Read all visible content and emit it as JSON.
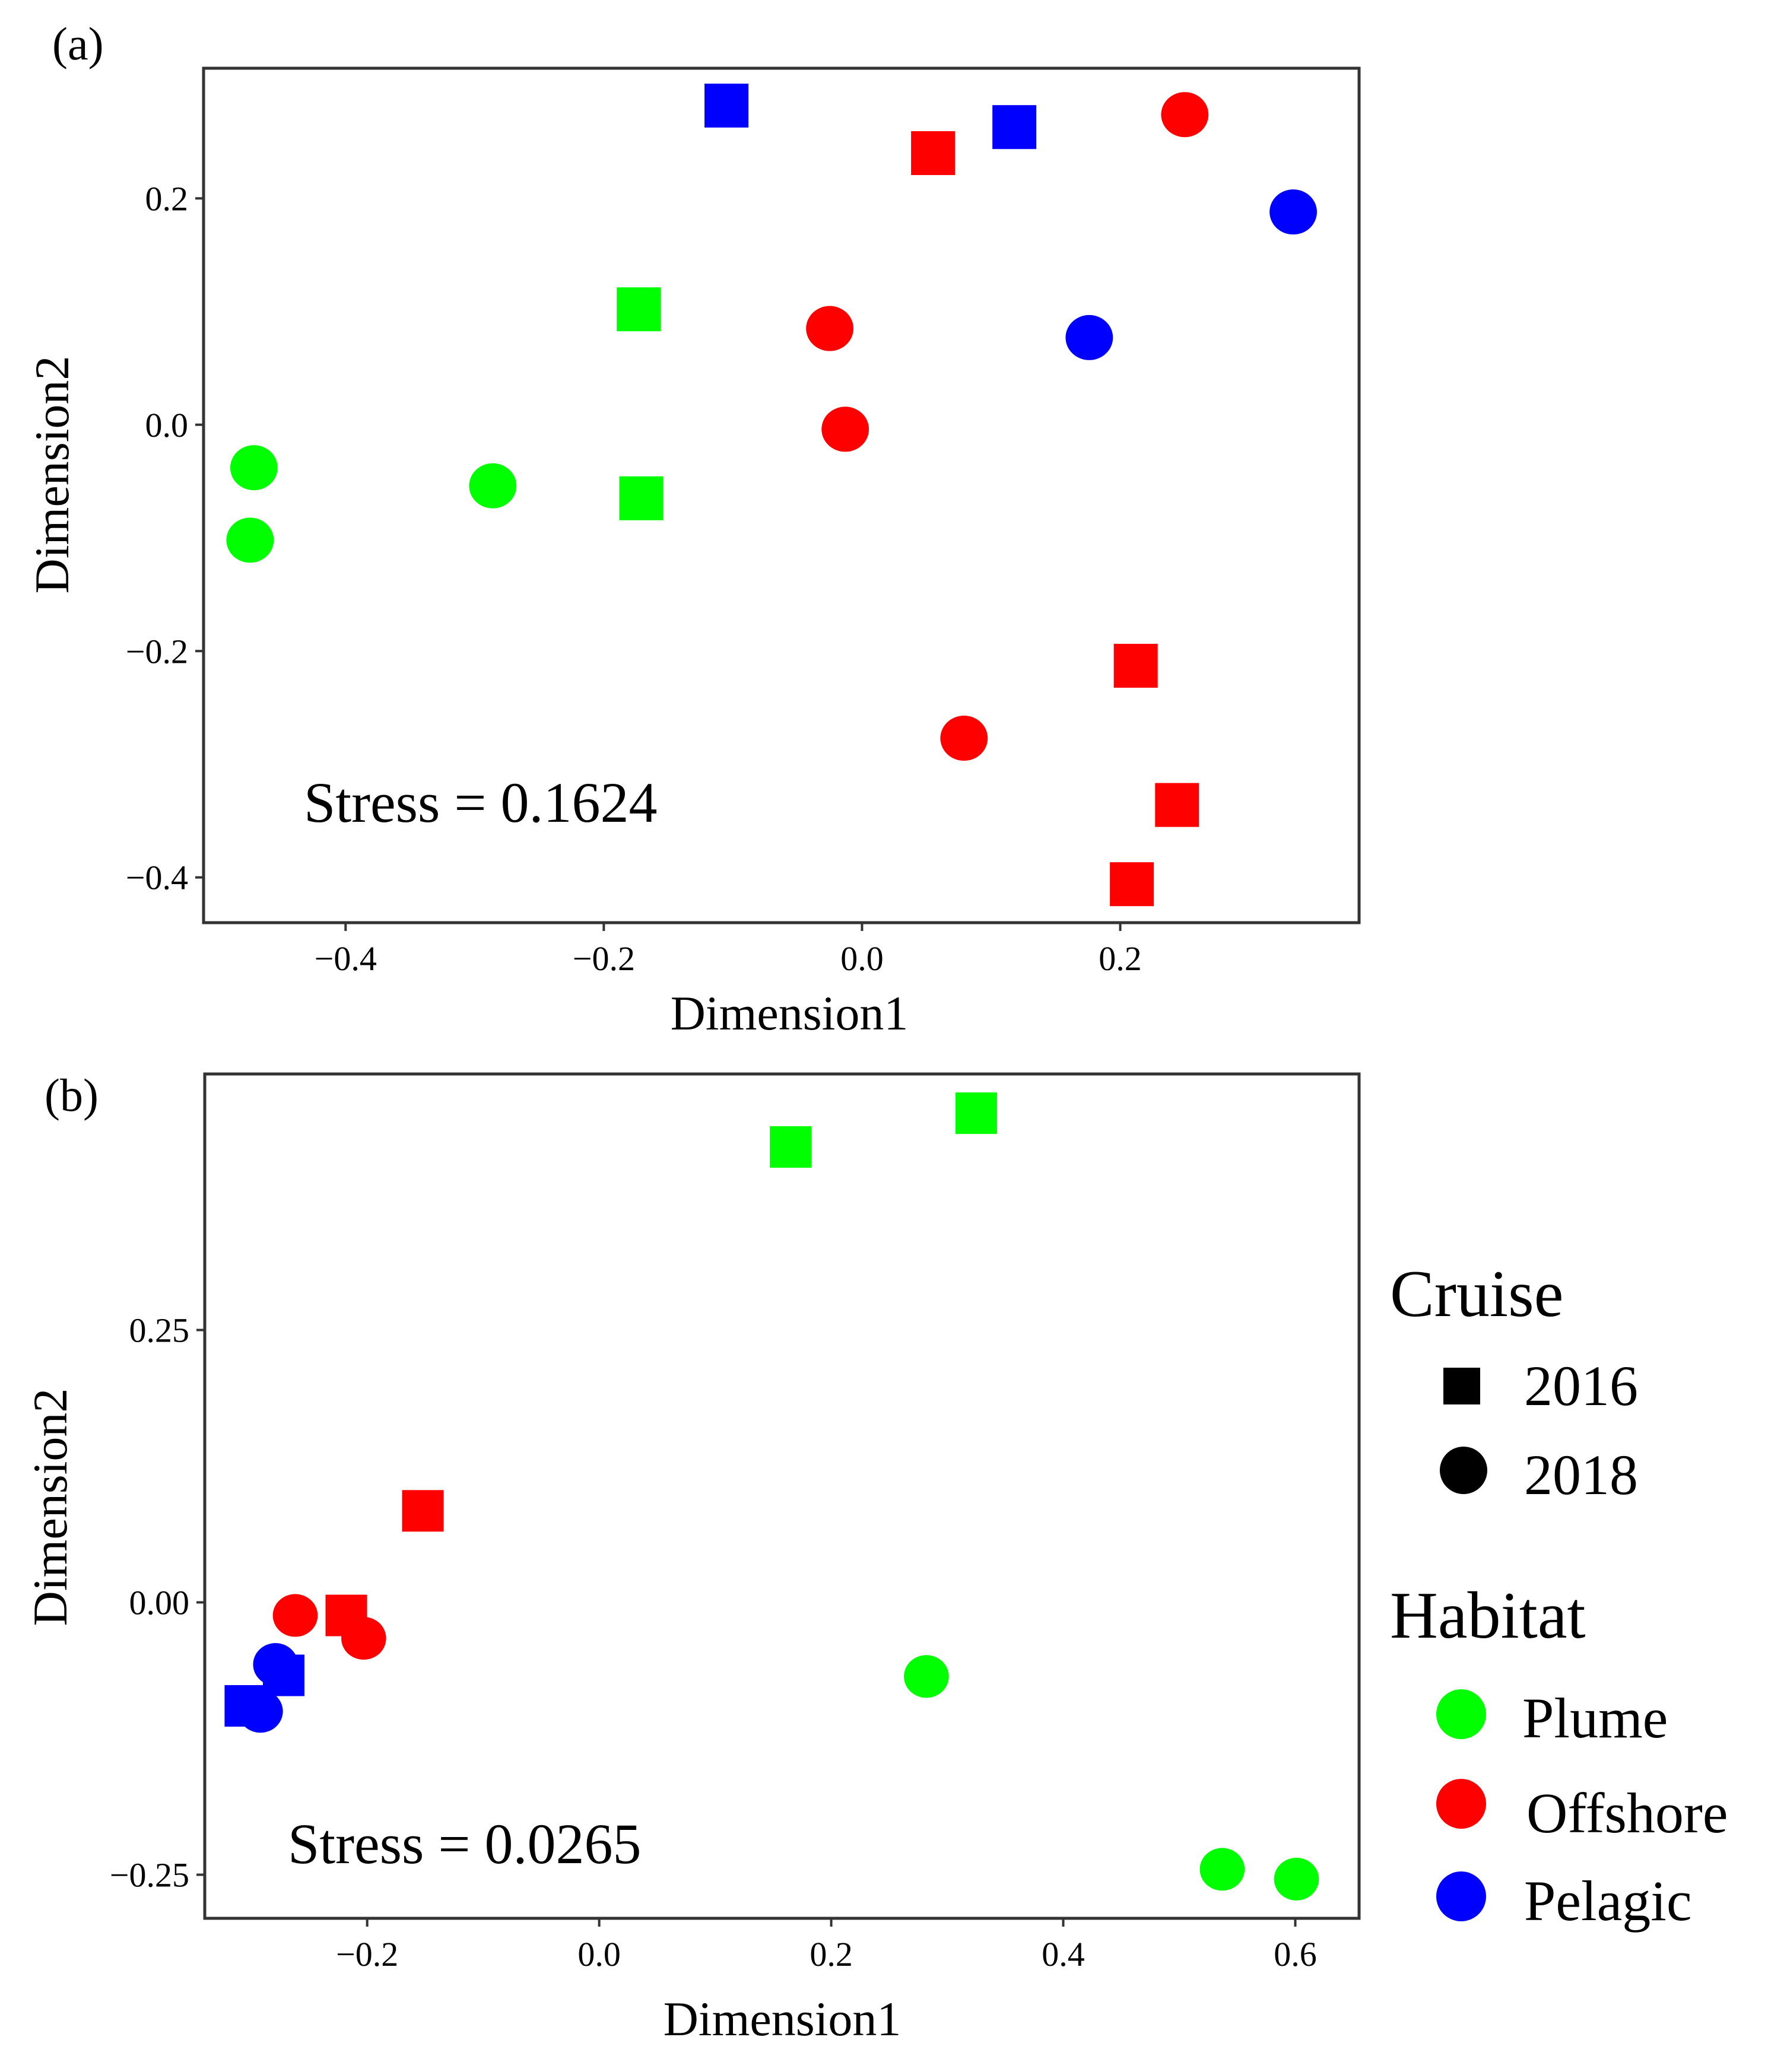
{
  "legend": {
    "cruise": {
      "title": "Cruise",
      "items": [
        {
          "label": "2016",
          "shape": "square"
        },
        {
          "label": "2018",
          "shape": "circle"
        }
      ]
    },
    "habitat": {
      "title": "Habitat",
      "items": [
        {
          "label": "Plume",
          "color": "#00ff00"
        },
        {
          "label": "Offshore",
          "color": "#ff0000"
        },
        {
          "label": "Pelagic",
          "color": "#0000ff"
        }
      ]
    }
  },
  "colors": {
    "Plume": "#00ff00",
    "Offshore": "#ff0000",
    "Pelagic": "#0000ff"
  },
  "chart_data": [
    {
      "type": "scatter",
      "panel_label": "(a)",
      "xlabel": "Dimension1",
      "ylabel": "Dimension2",
      "xlim": [
        -0.51,
        0.385
      ],
      "ylim": [
        -0.44,
        0.315
      ],
      "xticks": [
        -0.4,
        -0.2,
        0.0,
        0.2
      ],
      "xtick_labels": [
        "−0.4",
        "−0.2",
        "0.0",
        "0.2"
      ],
      "yticks": [
        0.2,
        0.0,
        -0.2,
        -0.4
      ],
      "ytick_labels": [
        "0.2",
        "0.0",
        "−0.2",
        "−0.4"
      ],
      "annotation": "Stress = 0.1624",
      "points": [
        {
          "x": -0.105,
          "y": 0.282,
          "cruise": "2016",
          "habitat": "Pelagic"
        },
        {
          "x": 0.118,
          "y": 0.263,
          "cruise": "2016",
          "habitat": "Pelagic"
        },
        {
          "x": 0.334,
          "y": 0.188,
          "cruise": "2018",
          "habitat": "Pelagic"
        },
        {
          "x": 0.176,
          "y": 0.077,
          "cruise": "2018",
          "habitat": "Pelagic"
        },
        {
          "x": 0.055,
          "y": 0.24,
          "cruise": "2016",
          "habitat": "Offshore"
        },
        {
          "x": 0.25,
          "y": 0.274,
          "cruise": "2018",
          "habitat": "Offshore"
        },
        {
          "x": -0.025,
          "y": 0.085,
          "cruise": "2018",
          "habitat": "Offshore"
        },
        {
          "x": -0.013,
          "y": -0.004,
          "cruise": "2018",
          "habitat": "Offshore"
        },
        {
          "x": 0.212,
          "y": -0.213,
          "cruise": "2016",
          "habitat": "Offshore"
        },
        {
          "x": 0.079,
          "y": -0.277,
          "cruise": "2018",
          "habitat": "Offshore"
        },
        {
          "x": 0.244,
          "y": -0.336,
          "cruise": "2016",
          "habitat": "Offshore"
        },
        {
          "x": 0.209,
          "y": -0.406,
          "cruise": "2016",
          "habitat": "Offshore"
        },
        {
          "x": -0.173,
          "y": 0.102,
          "cruise": "2016",
          "habitat": "Plume"
        },
        {
          "x": -0.471,
          "y": -0.038,
          "cruise": "2018",
          "habitat": "Plume"
        },
        {
          "x": -0.286,
          "y": -0.054,
          "cruise": "2018",
          "habitat": "Plume"
        },
        {
          "x": -0.171,
          "y": -0.065,
          "cruise": "2016",
          "habitat": "Plume"
        },
        {
          "x": -0.474,
          "y": -0.102,
          "cruise": "2018",
          "habitat": "Plume"
        }
      ]
    },
    {
      "type": "scatter",
      "panel_label": "(b)",
      "xlabel": "Dimension1",
      "ylabel": "Dimension2",
      "xlim": [
        -0.34,
        0.655
      ],
      "ylim": [
        -0.29,
        0.485
      ],
      "xticks": [
        -0.2,
        0.0,
        0.2,
        0.4,
        0.6
      ],
      "xtick_labels": [
        "−0.2",
        "0.0",
        "0.2",
        "0.4",
        "0.6"
      ],
      "yticks": [
        0.25,
        0.0,
        -0.25
      ],
      "ytick_labels": [
        "0.25",
        "0.00",
        "−0.25"
      ],
      "annotation": "Stress = 0.0265",
      "points": [
        {
          "x": 0.165,
          "y": 0.418,
          "cruise": "2016",
          "habitat": "Plume"
        },
        {
          "x": 0.325,
          "y": 0.449,
          "cruise": "2016",
          "habitat": "Plume"
        },
        {
          "x": 0.282,
          "y": -0.068,
          "cruise": "2018",
          "habitat": "Plume"
        },
        {
          "x": 0.537,
          "y": -0.245,
          "cruise": "2018",
          "habitat": "Plume"
        },
        {
          "x": 0.601,
          "y": -0.254,
          "cruise": "2018",
          "habitat": "Plume"
        },
        {
          "x": -0.152,
          "y": 0.084,
          "cruise": "2016",
          "habitat": "Offshore"
        },
        {
          "x": -0.218,
          "y": -0.012,
          "cruise": "2016",
          "habitat": "Offshore"
        },
        {
          "x": -0.262,
          "y": -0.012,
          "cruise": "2018",
          "habitat": "Offshore"
        },
        {
          "x": -0.203,
          "y": -0.033,
          "cruise": "2018",
          "habitat": "Offshore"
        },
        {
          "x": -0.272,
          "y": -0.067,
          "cruise": "2016",
          "habitat": "Pelagic"
        },
        {
          "x": -0.279,
          "y": -0.057,
          "cruise": "2018",
          "habitat": "Pelagic"
        },
        {
          "x": -0.305,
          "y": -0.095,
          "cruise": "2016",
          "habitat": "Pelagic"
        },
        {
          "x": -0.292,
          "y": -0.1,
          "cruise": "2018",
          "habitat": "Pelagic"
        }
      ]
    }
  ]
}
